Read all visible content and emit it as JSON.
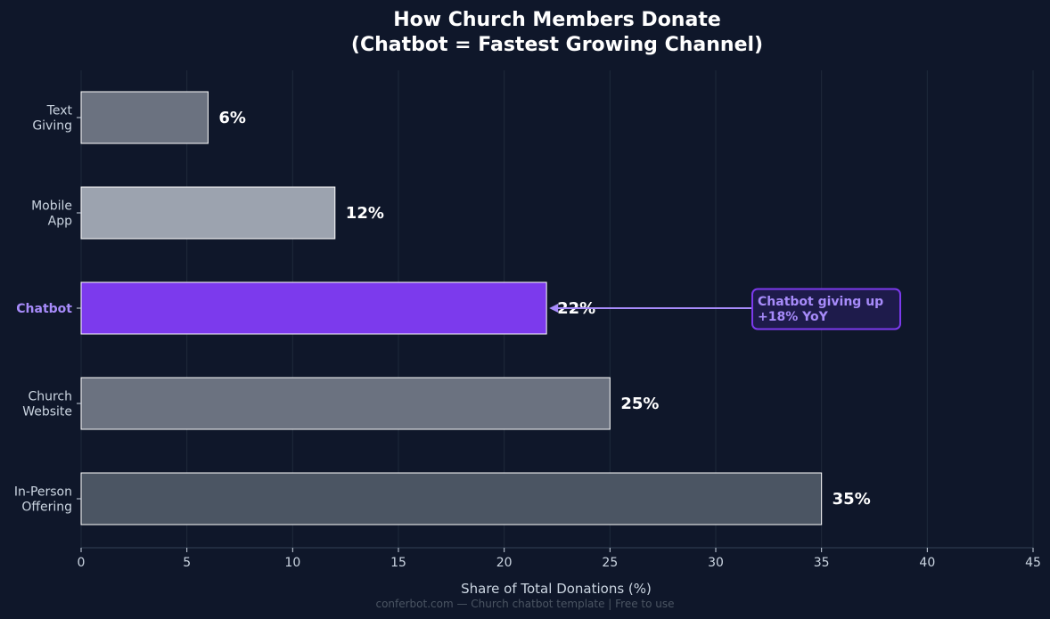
{
  "chart_data": {
    "type": "bar",
    "orientation": "horizontal",
    "title": [
      "How Church Members Donate",
      "(Chatbot = Fastest Growing Channel)"
    ],
    "xlabel": "Share of Total Donations (%)",
    "ylabel": "",
    "xlim": [
      0,
      45
    ],
    "xticks": [
      0,
      5,
      10,
      15,
      20,
      25,
      30,
      35,
      40,
      45
    ],
    "grid": "vertical",
    "value_suffix": "%",
    "highlight": "Chatbot",
    "bars": [
      {
        "category": [
          "Text",
          "Giving"
        ],
        "value": 6,
        "color": "#6b7280"
      },
      {
        "category": [
          "Mobile",
          "App"
        ],
        "value": 12,
        "color": "#9ca3af"
      },
      {
        "category": [
          "Chatbot"
        ],
        "value": 22,
        "color": "#7c3aed"
      },
      {
        "category": [
          "Church",
          "Website"
        ],
        "value": 25,
        "color": "#6b7280"
      },
      {
        "category": [
          "In-Person",
          "Offering"
        ],
        "value": 35,
        "color": "#4b5563"
      }
    ],
    "annotation": {
      "text": [
        "Chatbot giving up",
        "+18% YoY"
      ],
      "points_to": "Chatbot",
      "color": "#a78bfa"
    }
  },
  "footer": "conferbot.com — Church chatbot template | Free to use",
  "colors": {
    "background": "#0f172a",
    "grid": "#1e293b",
    "axis": "#334155",
    "text": "#cbd5e1",
    "annotation_box": "#1e1b4b",
    "annotation_border": "#7c3aed"
  }
}
